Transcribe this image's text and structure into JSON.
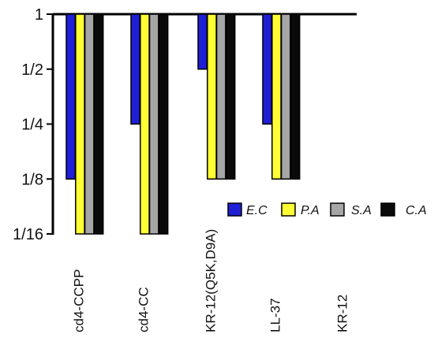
{
  "chart_data": {
    "type": "bar",
    "title": "",
    "xlabel": "",
    "ylabel": "",
    "y_scale": "log2-reversed",
    "y_ticks": [
      1,
      0.5,
      0.25,
      0.125,
      0.0625
    ],
    "y_tick_labels": [
      "1",
      "1/2",
      "1/4",
      "1/8",
      "1/16"
    ],
    "ylim": [
      0.0625,
      1
    ],
    "categories": [
      "cd4-CCPP",
      "cd4-CC",
      "KR-12(Q5K,D9A)",
      "LL-37",
      "KR-12"
    ],
    "series": [
      {
        "name": "E.C",
        "values": [
          0.125,
          0.25,
          0.5,
          0.25,
          1
        ],
        "color": "#1f1fd6"
      },
      {
        "name": "P.A",
        "values": [
          0.0625,
          0.0625,
          0.125,
          0.125,
          1
        ],
        "color": "#ffff33"
      },
      {
        "name": "S.A",
        "values": [
          0.0625,
          0.0625,
          0.125,
          0.125,
          1
        ],
        "color": "#a6a6a6"
      },
      {
        "name": "C.A",
        "values": [
          0.0625,
          0.0625,
          0.125,
          0.125,
          1
        ],
        "color": "#0a0a0a"
      }
    ],
    "legend_placement": "right-middle",
    "grid": false
  }
}
